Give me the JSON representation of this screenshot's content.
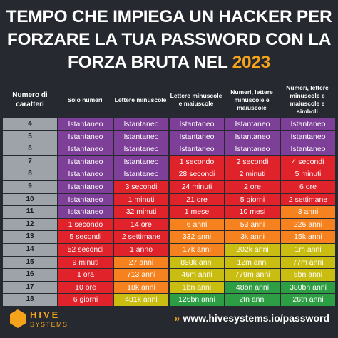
{
  "header": {
    "title": "TEMPO CHE IMPIEGA UN HACKER PER FORZARE LA TUA PASSWORD CON LA FORZA BRUTA NEL",
    "year": "2023"
  },
  "table": {
    "columns": [
      "Numero di caratteri",
      "Solo numeri",
      "Lettere minuscole",
      "Lettere minuscole e maiuscole",
      "Numeri, lettere minuscole e maiuscole",
      "Numeri, lettere minuscole e maiuscole e simboli"
    ],
    "rows": [
      {
        "length": "4",
        "cells": [
          "Istantaneo",
          "Istantaneo",
          "Istantaneo",
          "Istantaneo",
          "Istantaneo"
        ],
        "colors": [
          "p",
          "p",
          "p",
          "p",
          "p"
        ]
      },
      {
        "length": "5",
        "cells": [
          "Istantaneo",
          "Istantaneo",
          "Istantaneo",
          "Istantaneo",
          "Istantaneo"
        ],
        "colors": [
          "p",
          "p",
          "p",
          "p",
          "p"
        ]
      },
      {
        "length": "6",
        "cells": [
          "Istantaneo",
          "Istantaneo",
          "Istantaneo",
          "Istantaneo",
          "Istantaneo"
        ],
        "colors": [
          "p",
          "p",
          "p",
          "p",
          "p"
        ]
      },
      {
        "length": "7",
        "cells": [
          "Istantaneo",
          "Istantaneo",
          "1 secondo",
          "2 secondi",
          "4 secondi"
        ],
        "colors": [
          "p",
          "p",
          "r",
          "r",
          "r"
        ]
      },
      {
        "length": "8",
        "cells": [
          "Istantaneo",
          "Istantaneo",
          "28 secondi",
          "2 minuti",
          "5 minuti"
        ],
        "colors": [
          "p",
          "p",
          "r",
          "r",
          "r"
        ]
      },
      {
        "length": "9",
        "cells": [
          "Istantaneo",
          "3 secondi",
          "24 minuti",
          "2 ore",
          "6 ore"
        ],
        "colors": [
          "p",
          "r",
          "r",
          "r",
          "r"
        ]
      },
      {
        "length": "10",
        "cells": [
          "Istantaneo",
          "1 minuti",
          "21 ore",
          "5 giorni",
          "2 settimane"
        ],
        "colors": [
          "p",
          "r",
          "r",
          "r",
          "r"
        ]
      },
      {
        "length": "11",
        "cells": [
          "Istantaneo",
          "32 minuti",
          "1 mese",
          "10 mesi",
          "3 anni"
        ],
        "colors": [
          "p",
          "r",
          "r",
          "r",
          "o"
        ]
      },
      {
        "length": "12",
        "cells": [
          "1 secondo",
          "14 ore",
          "6 anni",
          "53 anni",
          "226 anni"
        ],
        "colors": [
          "r",
          "r",
          "o",
          "o",
          "o"
        ]
      },
      {
        "length": "13",
        "cells": [
          "5 secondi",
          "2 settimane",
          "332 anni",
          "3k anni",
          "15k anni"
        ],
        "colors": [
          "r",
          "r",
          "o",
          "o",
          "o"
        ]
      },
      {
        "length": "14",
        "cells": [
          "52 secondi",
          "1 anno",
          "17k anni",
          "202k anni",
          "1m anni"
        ],
        "colors": [
          "r",
          "r",
          "o",
          "y",
          "y"
        ]
      },
      {
        "length": "15",
        "cells": [
          "9 minuti",
          "27 anni",
          "898k anni",
          "12m anni",
          "77m anni"
        ],
        "colors": [
          "r",
          "o",
          "y",
          "y",
          "y"
        ]
      },
      {
        "length": "16",
        "cells": [
          "1 ora",
          "713 anni",
          "46m anni",
          "779m anni",
          "5bn anni"
        ],
        "colors": [
          "r",
          "o",
          "y",
          "y",
          "y"
        ]
      },
      {
        "length": "17",
        "cells": [
          "10 ore",
          "18k anni",
          "1bn anni",
          "48bn anni",
          "380bn anni"
        ],
        "colors": [
          "r",
          "o",
          "y",
          "g",
          "g"
        ]
      },
      {
        "length": "18",
        "cells": [
          "6 giorni",
          "481k anni",
          "126bn anni",
          "2tn anni",
          "26tn anni"
        ],
        "colors": [
          "r",
          "y",
          "g",
          "g",
          "g"
        ]
      }
    ]
  },
  "footer": {
    "logo_name": "HIVE",
    "logo_sub": "SYSTEMS",
    "url": "www.hivesystems.io/password"
  }
}
